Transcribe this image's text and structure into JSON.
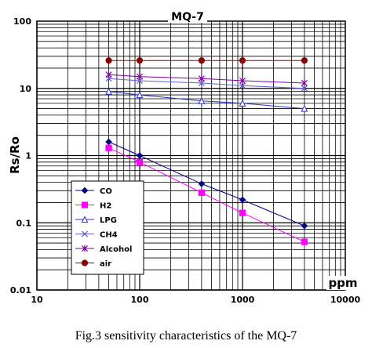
{
  "caption": "Fig.3 sensitivity characteristics of the MQ-7",
  "chart_data": {
    "type": "line",
    "title": "MQ-7",
    "xlabel": "ppm",
    "ylabel": "Rs/Ro",
    "xscale": "log",
    "yscale": "log",
    "xlim": [
      10,
      10000
    ],
    "ylim": [
      0.01,
      100
    ],
    "xticks": [
      "10",
      "100",
      "1000",
      "10000"
    ],
    "yticks": [
      "100",
      "10",
      "1",
      "0.1",
      "0.01"
    ],
    "grid": true,
    "legend_position": "bottom-left",
    "x": [
      50,
      100,
      400,
      1000,
      4000
    ],
    "series": [
      {
        "name": "CO",
        "color": "#000080",
        "marker": "diamond",
        "values": [
          1.6,
          1.0,
          0.38,
          0.22,
          0.09
        ]
      },
      {
        "name": "H2",
        "color": "#ff00ff",
        "marker": "square",
        "values": [
          1.3,
          0.8,
          0.28,
          0.14,
          0.052
        ]
      },
      {
        "name": "LPG",
        "color": "#3030d0",
        "marker": "triangle",
        "values": [
          9.0,
          8.0,
          6.5,
          6.0,
          5.0
        ]
      },
      {
        "name": "CH4",
        "color": "#6060d0",
        "marker": "x",
        "values": [
          14,
          13,
          12,
          11,
          10
        ]
      },
      {
        "name": "Alcohol",
        "color": "#8000a0",
        "marker": "star",
        "values": [
          16,
          15,
          14,
          13,
          12
        ]
      },
      {
        "name": "air",
        "color": "#8b0000",
        "marker": "circle",
        "values": [
          26,
          26,
          26,
          26,
          26
        ]
      }
    ]
  }
}
